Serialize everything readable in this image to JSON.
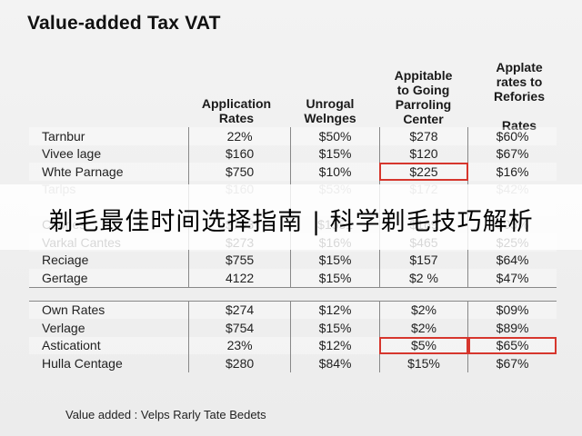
{
  "title": "Value-added Tax VAT",
  "headers": {
    "col1": "Application\nRates",
    "col2": "Unrogal\nWelnges",
    "col3": "Appitable\nto Going\nParroling\nCenter",
    "col4": "Applate\nrates to\nRefories\n\nRates"
  },
  "rows_group1": [
    {
      "name": "Tarnbur",
      "c1": "22%",
      "c2": "$50%",
      "c3": "$278",
      "c4": "$60%"
    },
    {
      "name": "Vivee lage",
      "c1": "$160",
      "c2": "$15%",
      "c3": "$120",
      "c4": "$67%"
    },
    {
      "name": "Whte Parnage",
      "c1": "$750",
      "c2": "$10%",
      "c3": "$225",
      "c4": "$16%"
    },
    {
      "name": "Tarlps",
      "c1": "$160",
      "c2": "$53%",
      "c3": "$172",
      "c4": "$42%"
    },
    {
      "name": "",
      "c1": "",
      "c2": "",
      "c3": "",
      "c4": ""
    },
    {
      "name": "Coorles",
      "c1": "$703",
      "c2": "$1551",
      "c3": "$169",
      "c4": "$05%"
    },
    {
      "name": "Varkal Cantes",
      "c1": "$273",
      "c2": "$16%",
      "c3": "$465",
      "c4": "$25%"
    },
    {
      "name": "Reciage",
      "c1": "$755",
      "c2": "$15%",
      "c3": "$157",
      "c4": "$64%"
    },
    {
      "name": "Gertage",
      "c1": "4122",
      "c2": "$15%",
      "c3": "$2 %",
      "c4": "$47%"
    }
  ],
  "rows_group2": [
    {
      "name": "Own Rates",
      "c1": "$274",
      "c2": "$12%",
      "c3": "$2%",
      "c4": "$09%"
    },
    {
      "name": "Verlage",
      "c1": "$754",
      "c2": "$15%",
      "c3": "$2%",
      "c4": "$89%"
    },
    {
      "name": "Asticationt",
      "c1": "23%",
      "c2": "$12%",
      "c3": "$5%",
      "c4": "$65%"
    },
    {
      "name": "Hulla Centage",
      "c1": "$280",
      "c2": "$84%",
      "c3": "$15%",
      "c4": "$67%"
    }
  ],
  "footer": "Value added : Velps Rarly Tate Bedets",
  "banner": "剃毛最佳时间选择指南 | 科学剃毛技巧解析",
  "colors": {
    "highlight": "#d6362d",
    "rule": "#888888"
  }
}
